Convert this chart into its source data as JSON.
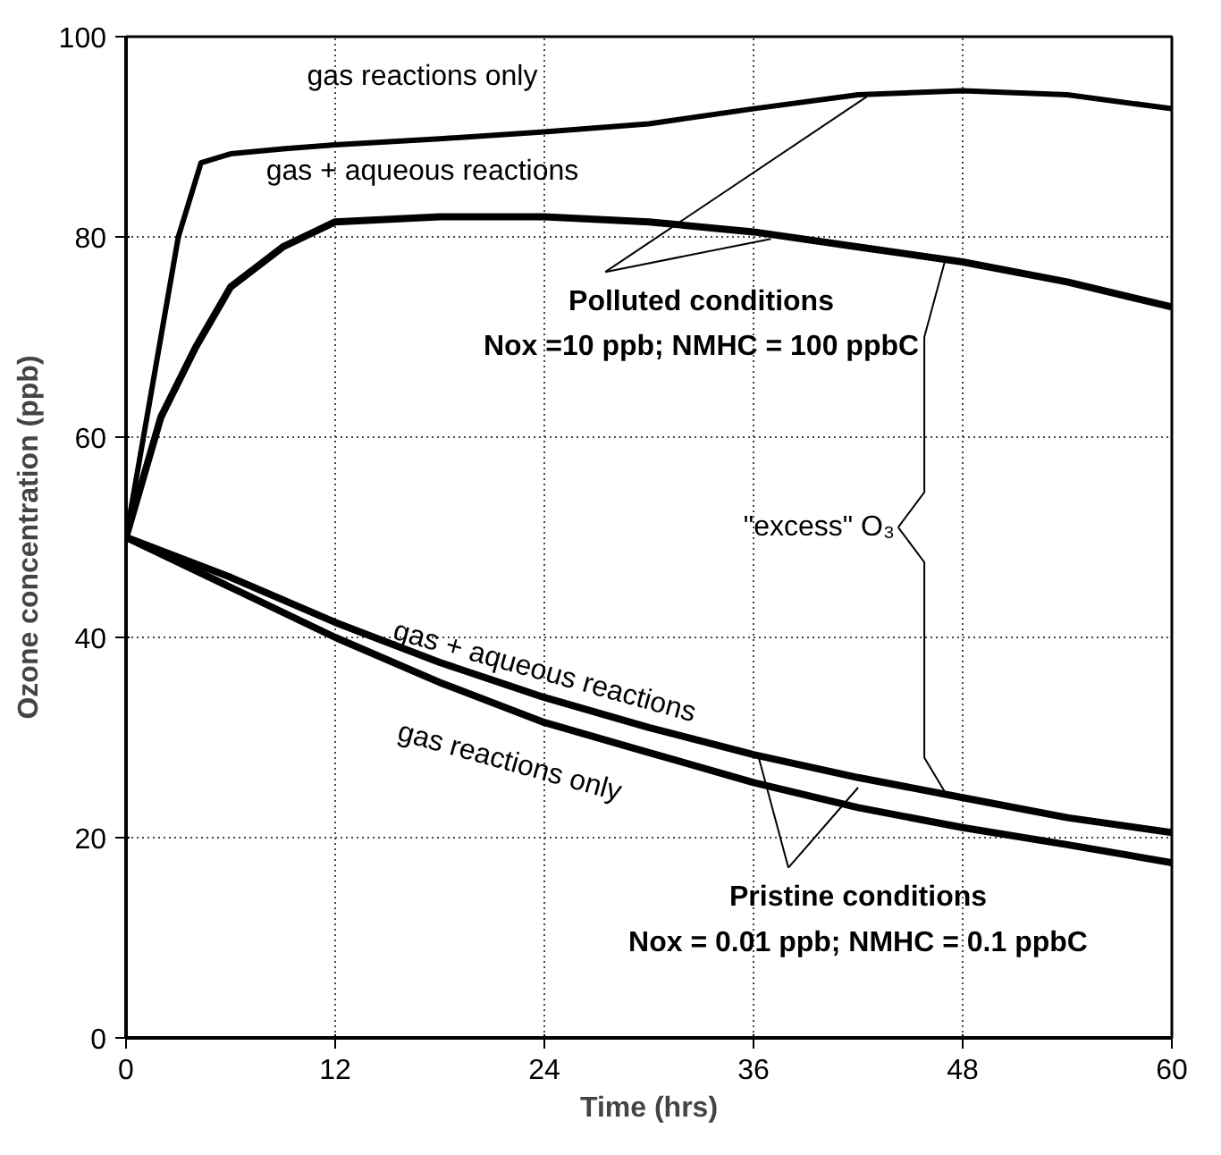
{
  "chart_data": {
    "type": "line",
    "xlabel": "Time (hrs)",
    "ylabel": "Ozone concentration (ppb)",
    "xlim": [
      0,
      60
    ],
    "ylim": [
      0,
      100
    ],
    "xticks": [
      0,
      12,
      24,
      36,
      48,
      60
    ],
    "yticks": [
      0,
      20,
      40,
      60,
      80,
      100
    ],
    "grid": true,
    "line_style": "solid",
    "marker": "none",
    "series": [
      {
        "color": "#000000",
        "x": [
          0,
          1,
          2,
          3,
          4.3,
          6,
          9,
          12,
          18,
          24,
          30,
          36,
          42,
          48,
          54,
          60
        ],
        "values": [
          50,
          60,
          70,
          80,
          87.4,
          88.3,
          88.8,
          89.2,
          89.8,
          90.5,
          91.3,
          92.8,
          94.2,
          94.6,
          94.2,
          92.8
        ]
      },
      {
        "color": "#000000",
        "x": [
          0,
          2,
          4,
          6,
          9,
          12,
          18,
          24,
          30,
          36,
          42,
          48,
          54,
          60
        ],
        "values": [
          50,
          62,
          69,
          75,
          79,
          81.5,
          82,
          82,
          81.5,
          80.5,
          79,
          77.5,
          75.5,
          73
        ]
      },
      {
        "color": "#000000",
        "x": [
          0,
          6,
          12,
          18,
          24,
          30,
          36,
          42,
          48,
          54,
          60
        ],
        "values": [
          50,
          46,
          41.5,
          37.5,
          34,
          31,
          28.3,
          26,
          24,
          22,
          20.5
        ]
      },
      {
        "color": "#000000",
        "x": [
          0,
          6,
          12,
          18,
          24,
          30,
          36,
          42,
          48,
          54,
          60
        ],
        "values": [
          50,
          45,
          40,
          35.5,
          31.5,
          28.5,
          25.5,
          23,
          21,
          19.3,
          17.5
        ]
      }
    ],
    "annotations": [
      "gas reactions only",
      "gas + aqueous reactions",
      {
        "text": "Polluted conditions",
        "x": 42.5,
        "y": 94
      },
      "Nox =10 ppb; NMHC = 100 ppbC",
      {
        "text": "\"excess\" O₃",
        "x": 47,
        "y": 77.7
      },
      "gas + aqueous reactions",
      "gas reactions only",
      {
        "text": "Pristine conditions",
        "x": 36.3,
        "y": 28
      },
      "Nox = 0.01 ppb; NMHC = 0.1 ppbC"
    ]
  }
}
